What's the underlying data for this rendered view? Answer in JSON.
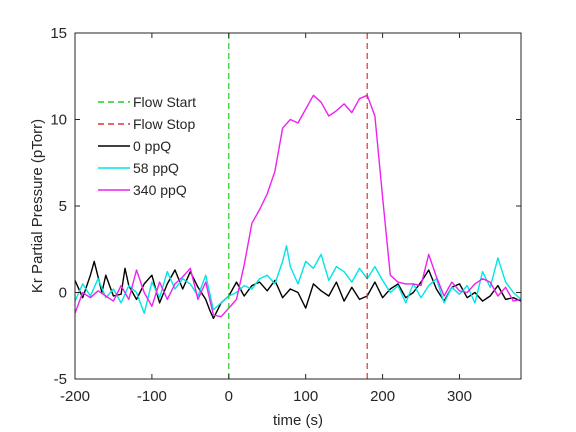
{
  "chart_data": {
    "type": "line",
    "xlabel": "time (s)",
    "ylabel": "Kr Partial Pressure (pTorr)",
    "xlim": [
      -200,
      380
    ],
    "ylim": [
      -5,
      15
    ],
    "xticks": [
      -200,
      -100,
      0,
      100,
      200,
      300
    ],
    "yticks": [
      -5,
      0,
      5,
      10,
      15
    ],
    "grid": false,
    "legend_position": "upper-left",
    "vlines": [
      {
        "name": "Flow Start",
        "x": 0,
        "color": "#22cc22",
        "style": "dashed"
      },
      {
        "name": "Flow Stop",
        "x": 180,
        "color": "#dd3333",
        "style": "dashed"
      }
    ],
    "series": [
      {
        "name": "0 ppQ",
        "color": "#000000",
        "x": [
          -200,
          -190,
          -180,
          -175,
          -170,
          -165,
          -160,
          -150,
          -140,
          -135,
          -130,
          -120,
          -110,
          -100,
          -90,
          -80,
          -70,
          -60,
          -50,
          -40,
          -30,
          -25,
          -20,
          -10,
          0,
          10,
          20,
          30,
          40,
          50,
          60,
          70,
          80,
          90,
          100,
          110,
          120,
          130,
          140,
          150,
          160,
          170,
          180,
          190,
          200,
          210,
          220,
          230,
          240,
          250,
          260,
          270,
          280,
          290,
          300,
          310,
          320,
          330,
          340,
          350,
          360,
          370,
          380
        ],
        "y": [
          0.7,
          -0.3,
          1.0,
          1.8,
          0.9,
          0.0,
          1.0,
          -0.2,
          -0.1,
          1.4,
          0.4,
          -0.4,
          0.5,
          1.0,
          -0.6,
          0.5,
          1.3,
          0.2,
          1.2,
          0.3,
          -0.4,
          -1.0,
          -1.5,
          -0.6,
          -0.2,
          0.6,
          -0.2,
          0.4,
          0.6,
          0.1,
          0.7,
          -0.3,
          0.2,
          0.0,
          -0.9,
          0.5,
          0.1,
          -0.2,
          0.6,
          -0.5,
          0.3,
          -0.4,
          -0.2,
          0.6,
          -0.3,
          0.2,
          0.5,
          -0.3,
          0.0,
          0.6,
          1.3,
          0.2,
          -0.5,
          0.3,
          0.5,
          -0.3,
          0.0,
          -0.5,
          -0.2,
          0.4,
          -0.4,
          -0.3,
          -0.5
        ]
      },
      {
        "name": "58 ppQ",
        "color": "#00e5e5",
        "x": [
          -200,
          -190,
          -180,
          -170,
          -160,
          -150,
          -140,
          -130,
          -120,
          -110,
          -100,
          -90,
          -80,
          -70,
          -60,
          -50,
          -40,
          -30,
          -20,
          -10,
          0,
          10,
          20,
          30,
          40,
          50,
          60,
          70,
          75,
          80,
          90,
          100,
          110,
          120,
          130,
          140,
          150,
          160,
          170,
          180,
          190,
          200,
          210,
          220,
          230,
          240,
          250,
          260,
          270,
          280,
          290,
          300,
          310,
          320,
          330,
          340,
          350,
          360,
          370,
          380
        ],
        "y": [
          -0.5,
          0.5,
          -0.2,
          0.8,
          -0.3,
          0.2,
          -0.6,
          0.4,
          0.0,
          -1.2,
          0.6,
          -0.3,
          1.2,
          0.2,
          0.8,
          0.5,
          -0.2,
          1.0,
          -1.0,
          -0.6,
          -0.2,
          0.0,
          0.4,
          0.2,
          0.8,
          1.0,
          0.5,
          1.8,
          2.7,
          1.5,
          0.5,
          1.8,
          1.4,
          2.2,
          0.7,
          1.5,
          1.2,
          0.6,
          1.4,
          0.8,
          1.5,
          0.7,
          0.0,
          0.4,
          -0.6,
          0.5,
          -0.3,
          0.4,
          0.8,
          -0.6,
          0.3,
          -0.1,
          0.4,
          -0.6,
          1.2,
          0.3,
          2.0,
          0.6,
          0.0,
          -0.4
        ]
      },
      {
        "name": "340 ppQ",
        "color": "#ee22ee",
        "x": [
          -200,
          -190,
          -180,
          -170,
          -160,
          -150,
          -140,
          -130,
          -120,
          -110,
          -100,
          -90,
          -80,
          -70,
          -60,
          -50,
          -40,
          -30,
          -20,
          -10,
          0,
          10,
          20,
          30,
          40,
          50,
          60,
          70,
          80,
          90,
          100,
          110,
          120,
          130,
          140,
          150,
          160,
          170,
          180,
          190,
          200,
          210,
          220,
          230,
          240,
          250,
          260,
          270,
          280,
          290,
          300,
          310,
          320,
          330,
          340,
          350,
          360,
          370,
          380
        ],
        "y": [
          -1.2,
          0.0,
          -0.3,
          0.1,
          -0.2,
          -0.5,
          0.4,
          -0.4,
          1.3,
          0.0,
          -0.8,
          0.6,
          -0.4,
          0.5,
          0.9,
          1.4,
          -0.4,
          0.6,
          -1.3,
          -1.4,
          -0.9,
          -0.4,
          1.6,
          4.0,
          4.8,
          5.7,
          7.0,
          9.5,
          10.0,
          9.8,
          10.6,
          11.4,
          11.0,
          10.2,
          10.5,
          10.9,
          10.4,
          11.2,
          11.4,
          10.2,
          5.5,
          1.0,
          0.6,
          0.5,
          0.5,
          0.4,
          2.2,
          0.9,
          -0.2,
          0.6,
          0.1,
          0.0,
          0.5,
          0.8,
          0.6,
          -0.2,
          0.3,
          -0.5,
          -0.4
        ]
      }
    ]
  }
}
